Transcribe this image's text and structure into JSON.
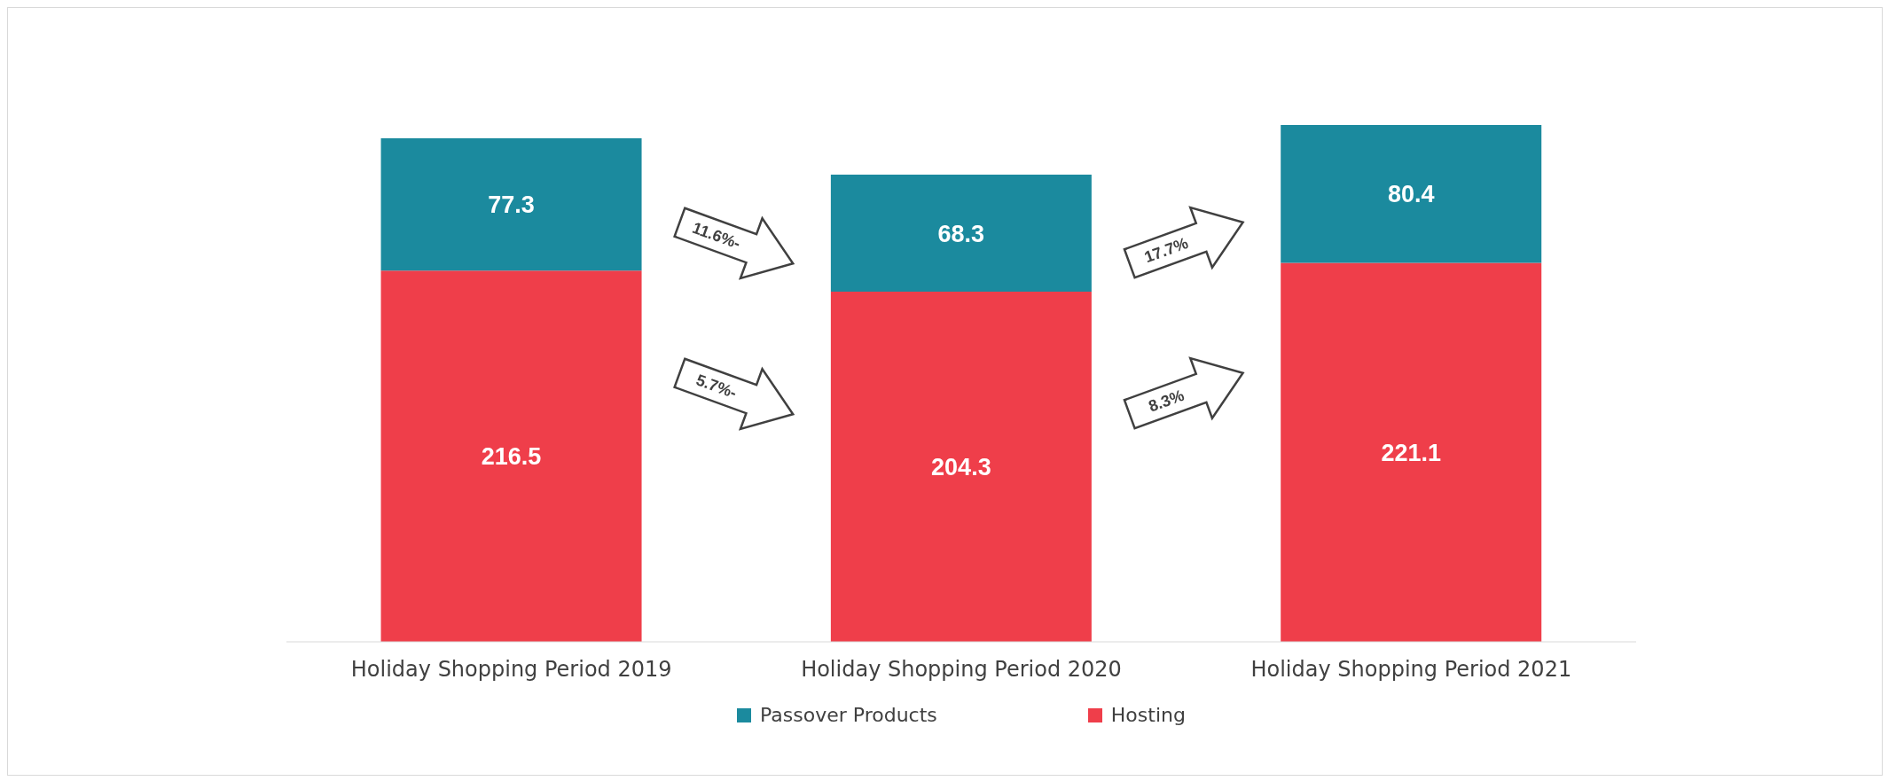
{
  "chart_data": {
    "type": "bar",
    "stacked": true,
    "categories": [
      "Holiday Shopping Period 2019",
      "Holiday Shopping Period 2020",
      "Holiday Shopping Period 2021"
    ],
    "series": [
      {
        "name": "Hosting",
        "color": "#ef3e4a",
        "values": [
          216.5,
          204.3,
          221.1
        ]
      },
      {
        "name": "Passover Products",
        "color": "#1b8a9e",
        "values": [
          77.3,
          68.3,
          80.4
        ]
      }
    ],
    "data_labels": true,
    "legend": "bottom",
    "grid": false,
    "annotations": [
      "11.6%-",
      "5.7%-",
      "17.7%",
      "8.3%"
    ]
  }
}
